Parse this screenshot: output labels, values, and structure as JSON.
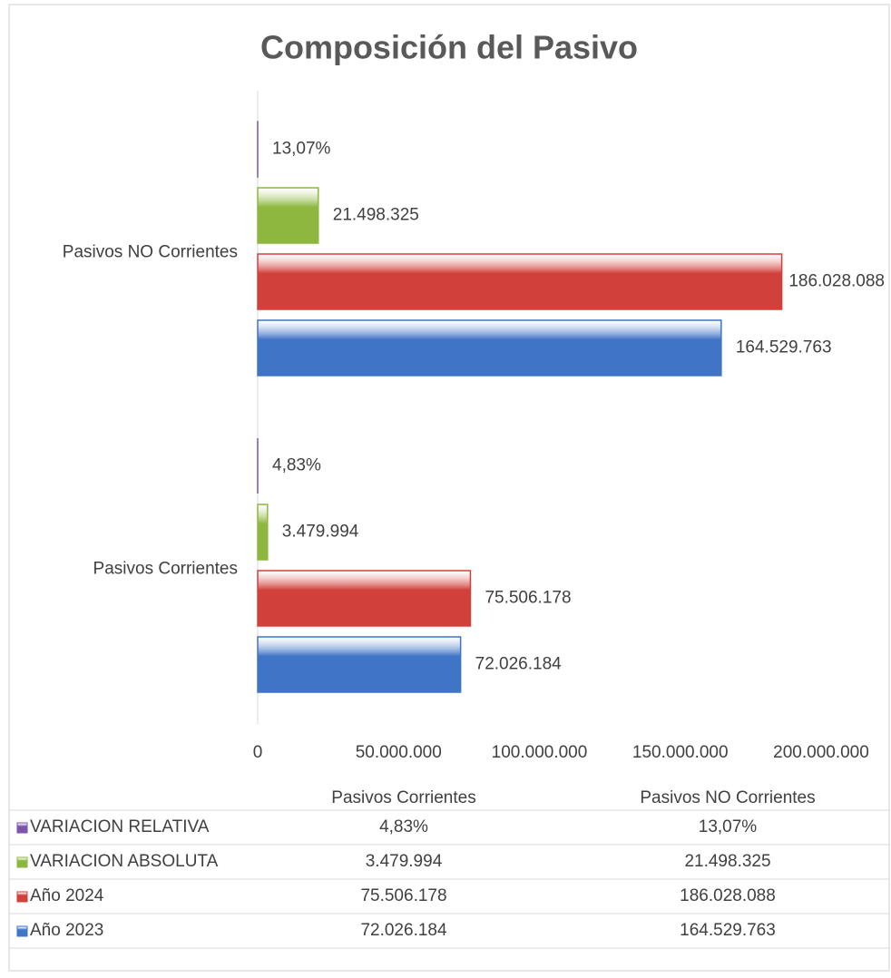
{
  "chart_data": {
    "type": "hbar",
    "title": "Composición del Pasivo",
    "categories": [
      "Pasivos Corrientes",
      "Pasivos NO Corrientes"
    ],
    "series": [
      {
        "name": "Año 2023",
        "color": "#3f74c6",
        "values": [
          72026184,
          164529763
        ],
        "value_labels": [
          "72.026.184",
          "164.529.763"
        ]
      },
      {
        "name": "Año 2024",
        "color": "#d2403b",
        "values": [
          75506178,
          186028088
        ],
        "value_labels": [
          "75.506.178",
          "186.028.088"
        ]
      },
      {
        "name": "VARIACION ABSOLUTA",
        "color": "#8db73e",
        "values": [
          3479994,
          21498325
        ],
        "value_labels": [
          "3.479.994",
          "21.498.325"
        ]
      },
      {
        "name": "VARIACION RELATIVA",
        "color": "#7b55a8",
        "values": [
          4.83,
          13.07
        ],
        "value_labels": [
          "4,83%",
          "13,07%"
        ]
      }
    ],
    "xlim": [
      0,
      200000000
    ],
    "xticks": [
      0,
      {
        "value": 50000000,
        "label": "50.000.000"
      },
      {
        "value": 100000000,
        "label": "100.000.000"
      },
      {
        "value": 150000000,
        "label": "150.000.000"
      },
      {
        "value": 200000000,
        "label": "200.000.000"
      }
    ],
    "grid": false
  }
}
